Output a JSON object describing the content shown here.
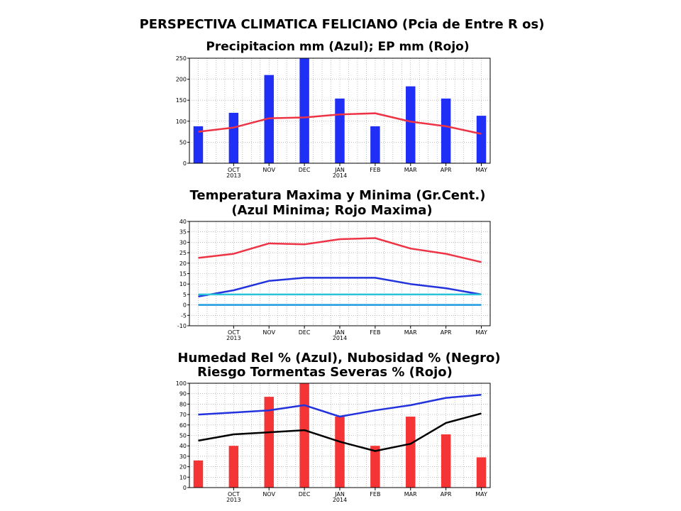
{
  "page_title": "PERSPECTIVA CLIMATICA FELICIANO (Pcia de Entre R os)",
  "chart_data": [
    {
      "type": "bar",
      "title": "Precipitacion mm (Azul); EP mm (Rojo)",
      "x": [
        0,
        1,
        2,
        3,
        4,
        5,
        6,
        7,
        8
      ],
      "x_ticks": [
        {
          "label": "OCT",
          "sub": "2013"
        },
        {
          "label": "NOV",
          "sub": ""
        },
        {
          "label": "DEC",
          "sub": ""
        },
        {
          "label": "JAN",
          "sub": "2014"
        },
        {
          "label": "FEB",
          "sub": ""
        },
        {
          "label": "MAR",
          "sub": ""
        },
        {
          "label": "APR",
          "sub": ""
        },
        {
          "label": "MAY",
          "sub": ""
        }
      ],
      "xlim": [
        -0.25,
        8.25
      ],
      "ylim": [
        0,
        250
      ],
      "y_ticks": [
        0,
        50,
        100,
        150,
        200,
        250
      ],
      "grid": true,
      "bars": {
        "color": "#1f2ff5",
        "values": [
          88,
          120,
          210,
          250,
          154,
          88,
          183,
          154,
          113
        ]
      },
      "lines": [
        {
          "color": "#ee3344",
          "values": [
            75,
            85,
            107,
            109,
            116,
            119,
            99,
            88,
            70
          ]
        }
      ]
    },
    {
      "type": "line",
      "title": "Temperatura Maxima y Minima (Gr.Cent.)",
      "subtitle": "(Azul Minima; Rojo Maxima)",
      "x": [
        0,
        1,
        2,
        3,
        4,
        5,
        6,
        7,
        8
      ],
      "x_ticks": [
        {
          "label": "OCT",
          "sub": "2013"
        },
        {
          "label": "NOV",
          "sub": ""
        },
        {
          "label": "DEC",
          "sub": ""
        },
        {
          "label": "JAN",
          "sub": "2014"
        },
        {
          "label": "FEB",
          "sub": ""
        },
        {
          "label": "MAR",
          "sub": ""
        },
        {
          "label": "APR",
          "sub": ""
        },
        {
          "label": "MAY",
          "sub": ""
        }
      ],
      "xlim": [
        -0.25,
        8.25
      ],
      "ylim": [
        -10,
        40
      ],
      "y_ticks": [
        -10,
        -5,
        0,
        5,
        10,
        15,
        20,
        25,
        30,
        35,
        40
      ],
      "grid": true,
      "lines": [
        {
          "color": "#ee3344",
          "values": [
            22.5,
            24.5,
            29.5,
            29,
            31.5,
            32,
            27,
            24.5,
            20.5
          ]
        },
        {
          "color": "#2233dd",
          "values": [
            4,
            7,
            11.5,
            13,
            13,
            13,
            10,
            8,
            5
          ]
        },
        {
          "color": "#29c2d8",
          "values": [
            5,
            5,
            5,
            5,
            5,
            5,
            5,
            5,
            5
          ]
        },
        {
          "color": "#1e9be0",
          "values": [
            0,
            0,
            0,
            0,
            0,
            0,
            0,
            0,
            0
          ]
        }
      ]
    },
    {
      "type": "bar",
      "title": "Humedad Rel % (Azul), Nubosidad % (Negro)",
      "subtitle": "Riesgo Tormentas Severas % (Rojo)",
      "x": [
        0,
        1,
        2,
        3,
        4,
        5,
        6,
        7,
        8
      ],
      "x_ticks": [
        {
          "label": "OCT",
          "sub": "2013"
        },
        {
          "label": "NOV",
          "sub": ""
        },
        {
          "label": "DEC",
          "sub": ""
        },
        {
          "label": "JAN",
          "sub": "2014"
        },
        {
          "label": "FEB",
          "sub": ""
        },
        {
          "label": "MAR",
          "sub": ""
        },
        {
          "label": "APR",
          "sub": ""
        },
        {
          "label": "MAY",
          "sub": ""
        }
      ],
      "xlim": [
        -0.25,
        8.25
      ],
      "ylim": [
        0,
        100
      ],
      "y_ticks": [
        0,
        10,
        20,
        30,
        40,
        50,
        60,
        70,
        80,
        90,
        100
      ],
      "grid": true,
      "bars": {
        "color": "#f53535",
        "values": [
          26,
          40,
          87,
          100,
          68,
          40,
          68,
          51,
          29
        ]
      },
      "lines": [
        {
          "color": "#2233dd",
          "values": [
            70,
            72,
            74,
            79,
            68,
            74,
            79,
            86,
            89
          ]
        },
        {
          "color": "#000000",
          "values": [
            45,
            51,
            53,
            55,
            44,
            35,
            42,
            62,
            71
          ]
        }
      ]
    }
  ]
}
